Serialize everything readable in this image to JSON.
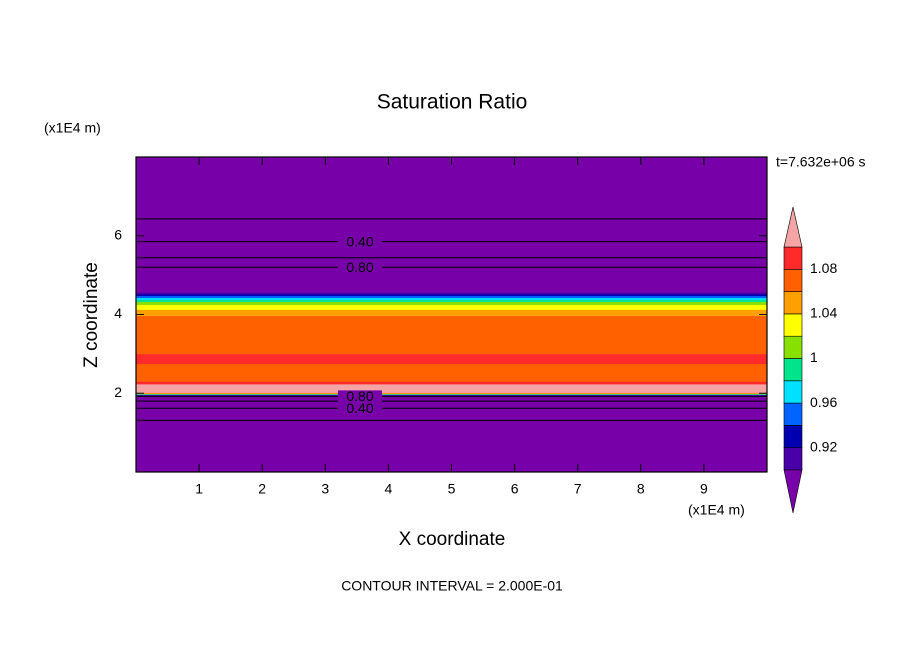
{
  "chart_data": {
    "type": "contour",
    "title": "Saturation Ratio",
    "x_label": "X coordinate",
    "y_label": "Z coordinate",
    "x_unit": "(x1E4 m)",
    "y_unit": "(x1E4 m)",
    "time_label": "t=7.632e+06 s",
    "footer": "CONTOUR INTERVAL = 2.000E-01",
    "xlim": [
      0,
      10
    ],
    "ylim": [
      0,
      8
    ],
    "xticks": [
      1,
      2,
      3,
      4,
      5,
      6,
      7,
      8,
      9
    ],
    "yticks": [
      2,
      4,
      6
    ],
    "z": [
      0,
      1.31,
      1.62,
      1.8,
      1.92,
      1.98,
      2.02,
      2.2,
      2.3,
      2.6,
      2.9,
      3.2,
      3.5,
      3.8,
      4.05,
      4.2,
      4.3,
      4.4,
      4.5,
      4.6,
      5.2,
      5.44,
      5.85,
      6.43,
      8
    ],
    "values": [
      0.1,
      0.2,
      0.4,
      0.6,
      0.8,
      1.0,
      1.11,
      1.11,
      1.08,
      1.07,
      1.09,
      1.06,
      1.07,
      1.08,
      1.05,
      1.03,
      1.01,
      0.97,
      0.93,
      0.88,
      0.8,
      0.6,
      0.4,
      0.2,
      0.1
    ],
    "contour_levels": [
      0.2,
      {
        "value": 0.4,
        "label": "0.40"
      },
      0.6,
      {
        "value": 0.8,
        "label": "0.80"
      }
    ],
    "colorbar": {
      "levels": [
        0.9,
        0.92,
        0.94,
        0.96,
        0.98,
        1,
        1.02,
        1.04,
        1.06,
        1.08,
        1.1
      ],
      "colors": [
        "#7800a8",
        "#4a00a8",
        "#0000b0",
        "#0064ff",
        "#00e0ff",
        "#00e48c",
        "#88e000",
        "#ffff00",
        "#ffa000",
        "#ff6000",
        "#ff2a2a",
        "#f4a4a4"
      ],
      "ticks": [
        0.92,
        0.96,
        1,
        1.04,
        1.08
      ]
    }
  }
}
